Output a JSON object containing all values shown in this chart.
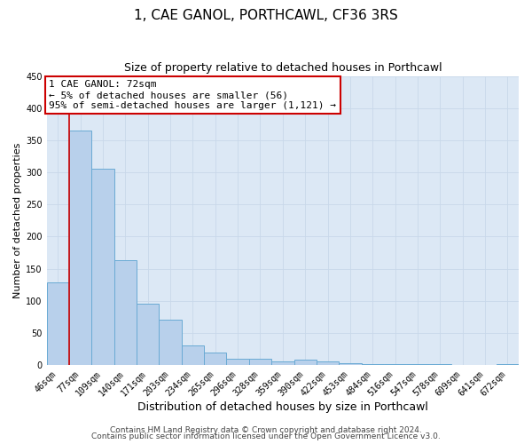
{
  "title": "1, CAE GANOL, PORTHCAWL, CF36 3RS",
  "subtitle": "Size of property relative to detached houses in Porthcawl",
  "xlabel": "Distribution of detached houses by size in Porthcawl",
  "ylabel": "Number of detached properties",
  "bar_labels": [
    "46sqm",
    "77sqm",
    "109sqm",
    "140sqm",
    "171sqm",
    "203sqm",
    "234sqm",
    "265sqm",
    "296sqm",
    "328sqm",
    "359sqm",
    "390sqm",
    "422sqm",
    "453sqm",
    "484sqm",
    "516sqm",
    "547sqm",
    "578sqm",
    "609sqm",
    "641sqm",
    "672sqm"
  ],
  "bar_values": [
    128,
    365,
    305,
    163,
    95,
    70,
    30,
    20,
    9,
    10,
    6,
    8,
    5,
    3,
    2,
    2,
    1,
    1,
    0,
    0,
    2
  ],
  "bar_color": "#b8d0eb",
  "bar_edge_color": "#6aaad4",
  "annotation_line_color": "#cc0000",
  "annotation_box_text": "1 CAE GANOL: 72sqm\n← 5% of detached houses are smaller (56)\n95% of semi-detached houses are larger (1,121) →",
  "annotation_box_color": "#cc0000",
  "ylim": [
    0,
    450
  ],
  "yticks": [
    0,
    50,
    100,
    150,
    200,
    250,
    300,
    350,
    400,
    450
  ],
  "grid_color": "#c8d8ea",
  "background_color": "#dce8f5",
  "footer_line1": "Contains HM Land Registry data © Crown copyright and database right 2024.",
  "footer_line2": "Contains public sector information licensed under the Open Government Licence v3.0.",
  "title_fontsize": 11,
  "subtitle_fontsize": 9,
  "xlabel_fontsize": 9,
  "ylabel_fontsize": 8,
  "tick_fontsize": 7,
  "annotation_fontsize": 8,
  "footer_fontsize": 6.5
}
